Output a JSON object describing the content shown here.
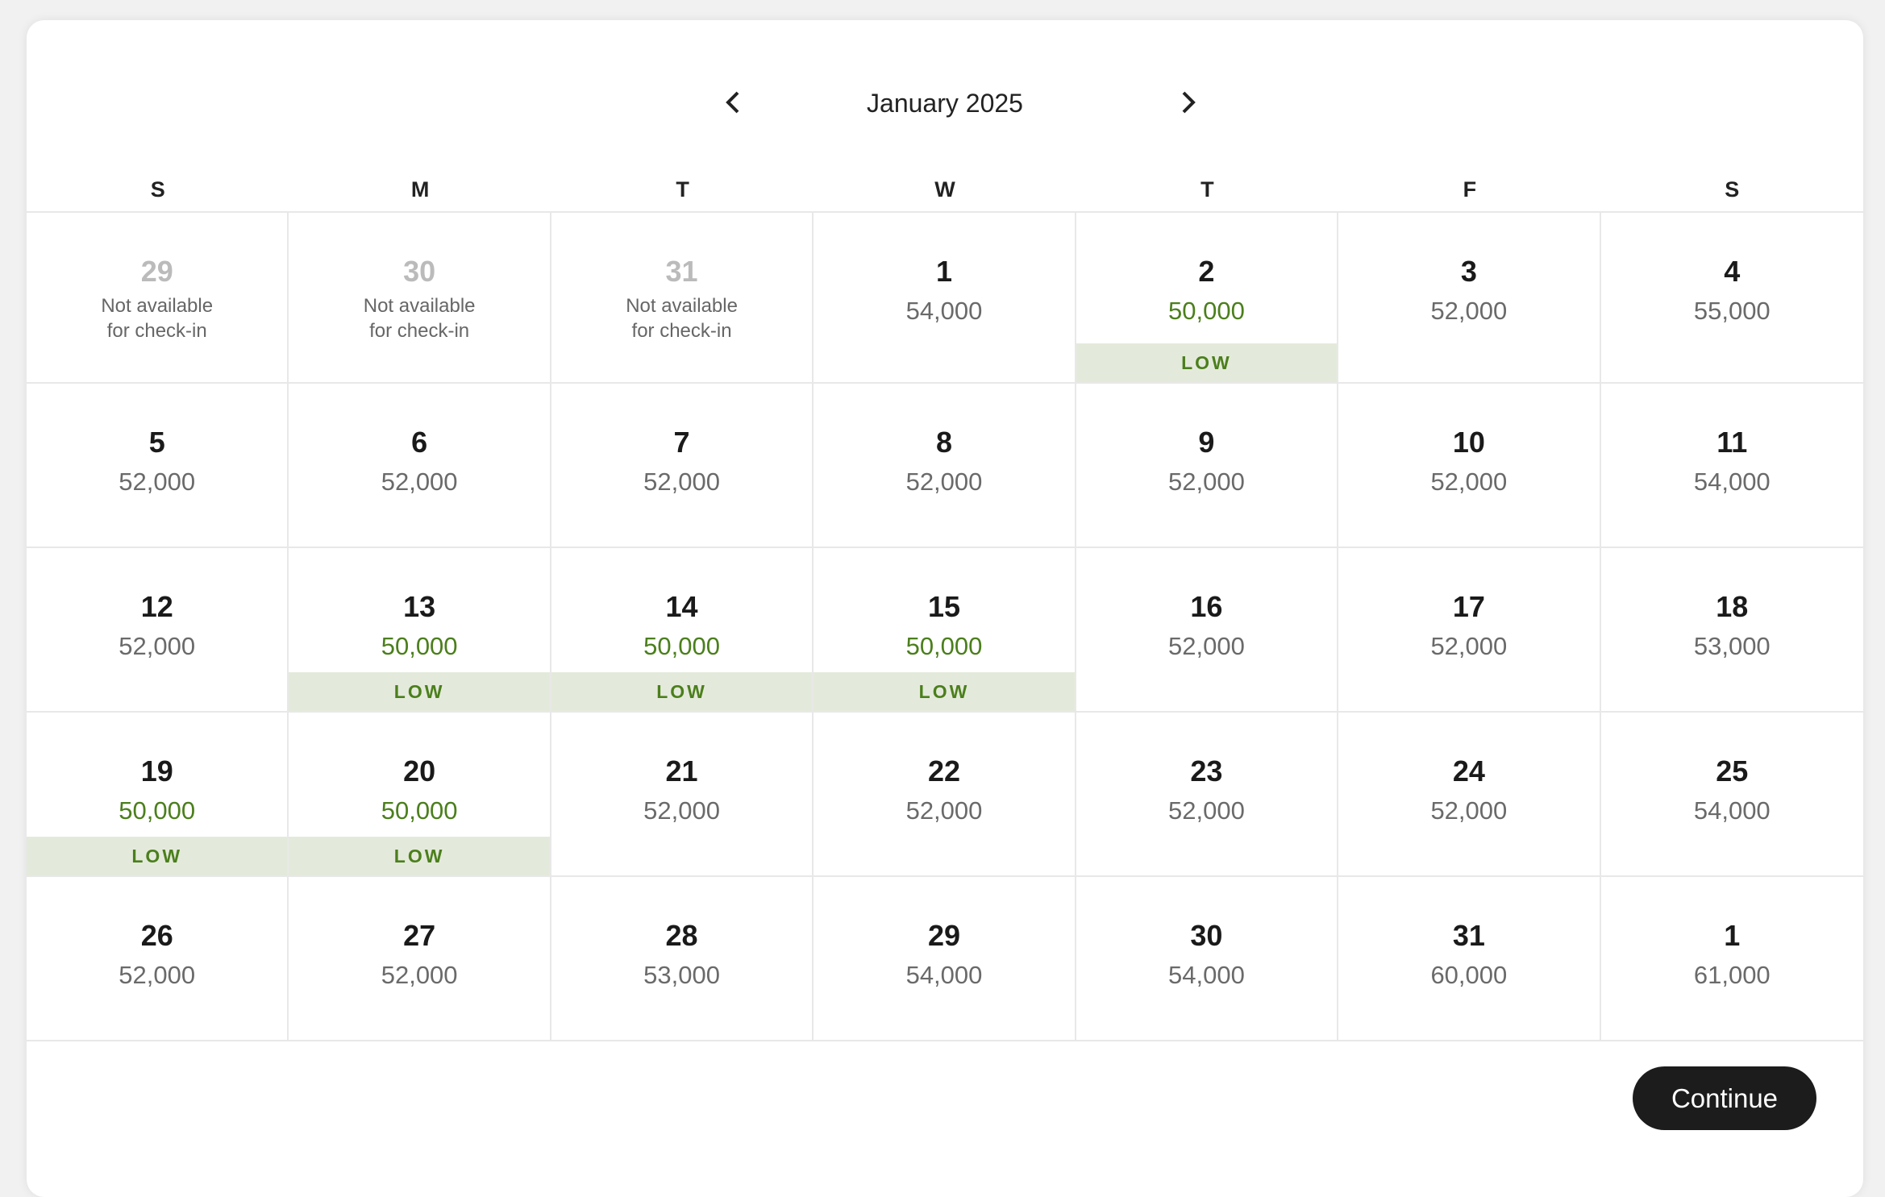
{
  "header": {
    "title": "January 2025"
  },
  "weekdays": [
    "S",
    "M",
    "T",
    "W",
    "T",
    "F",
    "S"
  ],
  "weeks": [
    [
      {
        "day": "29",
        "note": [
          "Not available",
          "for check-in"
        ],
        "disabled": true
      },
      {
        "day": "30",
        "note": [
          "Not available",
          "for check-in"
        ],
        "disabled": true
      },
      {
        "day": "31",
        "note": [
          "Not available",
          "for check-in"
        ],
        "disabled": true
      },
      {
        "day": "1",
        "price": "54,000"
      },
      {
        "day": "2",
        "price": "50,000",
        "tag": "LOW"
      },
      {
        "day": "3",
        "price": "52,000"
      },
      {
        "day": "4",
        "price": "55,000"
      }
    ],
    [
      {
        "day": "5",
        "price": "52,000"
      },
      {
        "day": "6",
        "price": "52,000"
      },
      {
        "day": "7",
        "price": "52,000"
      },
      {
        "day": "8",
        "price": "52,000"
      },
      {
        "day": "9",
        "price": "52,000"
      },
      {
        "day": "10",
        "price": "52,000"
      },
      {
        "day": "11",
        "price": "54,000"
      }
    ],
    [
      {
        "day": "12",
        "price": "52,000"
      },
      {
        "day": "13",
        "price": "50,000",
        "tag": "LOW"
      },
      {
        "day": "14",
        "price": "50,000",
        "tag": "LOW"
      },
      {
        "day": "15",
        "price": "50,000",
        "tag": "LOW"
      },
      {
        "day": "16",
        "price": "52,000"
      },
      {
        "day": "17",
        "price": "52,000"
      },
      {
        "day": "18",
        "price": "53,000"
      }
    ],
    [
      {
        "day": "19",
        "price": "50,000",
        "tag": "LOW"
      },
      {
        "day": "20",
        "price": "50,000",
        "tag": "LOW"
      },
      {
        "day": "21",
        "price": "52,000"
      },
      {
        "day": "22",
        "price": "52,000"
      },
      {
        "day": "23",
        "price": "52,000"
      },
      {
        "day": "24",
        "price": "52,000"
      },
      {
        "day": "25",
        "price": "54,000"
      }
    ],
    [
      {
        "day": "26",
        "price": "52,000"
      },
      {
        "day": "27",
        "price": "52,000"
      },
      {
        "day": "28",
        "price": "53,000"
      },
      {
        "day": "29",
        "price": "54,000"
      },
      {
        "day": "30",
        "price": "54,000"
      },
      {
        "day": "31",
        "price": "60,000"
      },
      {
        "day": "1",
        "price": "61,000"
      }
    ]
  ],
  "button": "Continue"
}
